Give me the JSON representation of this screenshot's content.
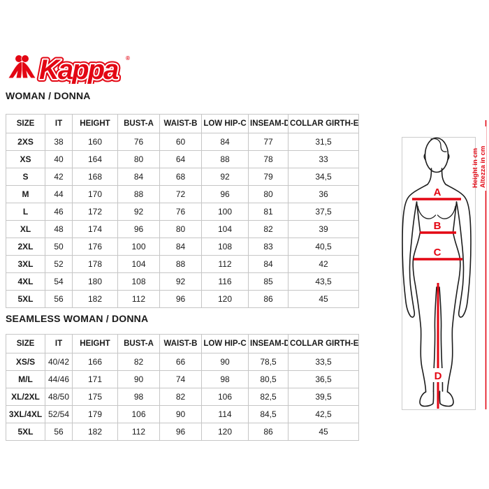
{
  "logo": {
    "brand": "Kappa",
    "registered": "®"
  },
  "colors": {
    "accent_red": "#e30613",
    "line_black": "#1c1c1c",
    "grid_gray": "#c6c6c6"
  },
  "sections": [
    {
      "title": "WOMAN / DONNA",
      "columns": [
        "SIZE",
        "IT",
        "HEIGHT",
        "BUST-A",
        "WAIST-B",
        "LOW HIP-C",
        "INSEAM-D",
        "COLLAR GIRTH-E"
      ],
      "rows": [
        [
          "2XS",
          "38",
          "160",
          "76",
          "60",
          "84",
          "77",
          "31,5"
        ],
        [
          "XS",
          "40",
          "164",
          "80",
          "64",
          "88",
          "78",
          "33"
        ],
        [
          "S",
          "42",
          "168",
          "84",
          "68",
          "92",
          "79",
          "34,5"
        ],
        [
          "M",
          "44",
          "170",
          "88",
          "72",
          "96",
          "80",
          "36"
        ],
        [
          "L",
          "46",
          "172",
          "92",
          "76",
          "100",
          "81",
          "37,5"
        ],
        [
          "XL",
          "48",
          "174",
          "96",
          "80",
          "104",
          "82",
          "39"
        ],
        [
          "2XL",
          "50",
          "176",
          "100",
          "84",
          "108",
          "83",
          "40,5"
        ],
        [
          "3XL",
          "52",
          "178",
          "104",
          "88",
          "112",
          "84",
          "42"
        ],
        [
          "4XL",
          "54",
          "180",
          "108",
          "92",
          "116",
          "85",
          "43,5"
        ],
        [
          "5XL",
          "56",
          "182",
          "112",
          "96",
          "120",
          "86",
          "45"
        ]
      ]
    },
    {
      "title": "SEAMLESS WOMAN / DONNA",
      "columns": [
        "SIZE",
        "IT",
        "HEIGHT",
        "BUST-A",
        "WAIST-B",
        "LOW HIP-C",
        "INSEAM-D",
        "COLLAR GIRTH-E"
      ],
      "rows": [
        [
          "XS/S",
          "40/42",
          "166",
          "82",
          "66",
          "90",
          "78,5",
          "33,5"
        ],
        [
          "M/L",
          "44/46",
          "171",
          "90",
          "74",
          "98",
          "80,5",
          "36,5"
        ],
        [
          "XL/2XL",
          "48/50",
          "175",
          "98",
          "82",
          "106",
          "82,5",
          "39,5"
        ],
        [
          "3XL/4XL",
          "52/54",
          "179",
          "106",
          "90",
          "114",
          "84,5",
          "42,5"
        ],
        [
          "5XL",
          "56",
          "182",
          "112",
          "96",
          "120",
          "86",
          "45"
        ]
      ]
    }
  ],
  "figure": {
    "label_a": "A",
    "label_b": "B",
    "label_c": "C",
    "label_d": "D",
    "height_label_en": "Height in cm",
    "height_label_it": "Altezza in cm"
  }
}
